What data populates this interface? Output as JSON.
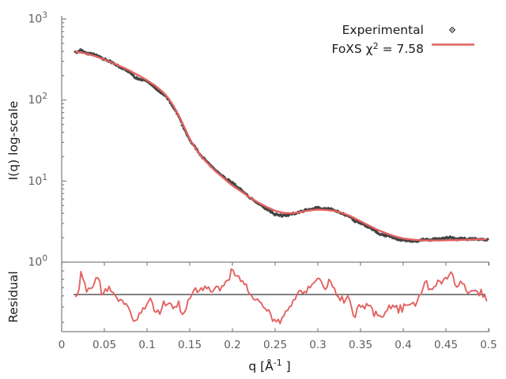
{
  "figure": {
    "legend": {
      "experimental_label": "Experimental",
      "fit_label_prefix": "FoXS χ",
      "fit_label_sup": "2",
      "fit_label_suffix": " = 7.58",
      "chi_squared": 7.58
    },
    "axes": {
      "xlabel_prefix": "q [Å",
      "xlabel_sup": "-1",
      "xlabel_suffix": " ]",
      "ylabel_main": "I(q) log-scale",
      "ylabel_residual": "Residual",
      "x_tick_labels": [
        "0",
        "0.05",
        "0.1",
        "0.15",
        "0.2",
        "0.25",
        "0.3",
        "0.35",
        "0.4",
        "0.45",
        "0.5"
      ],
      "x_tick_values": [
        0,
        0.05,
        0.1,
        0.15,
        0.2,
        0.25,
        0.3,
        0.35,
        0.4,
        0.45,
        0.5
      ],
      "y_tick_labels": [
        {
          "base": "10",
          "exp": "3",
          "value": 1000
        },
        {
          "base": "10",
          "exp": "2",
          "value": 100
        },
        {
          "base": "10",
          "exp": "1",
          "value": 10
        },
        {
          "base": "10",
          "exp": "0",
          "value": 1
        }
      ]
    },
    "colors": {
      "experimental": "#333333",
      "fit": "#e26261",
      "axis": "#808080",
      "tick_text": "#5e5e5e",
      "reference_line": "#000000",
      "background": "#ffffff"
    }
  },
  "chart_data": [
    {
      "type": "scatter",
      "title": "FoXS fit to experimental SAXS profile",
      "xlabel": "q [Å^-1]",
      "ylabel": "I(q) log-scale",
      "x_range": [
        0,
        0.5
      ],
      "y_scale": "log",
      "y_range": [
        1,
        1000
      ],
      "grid": false,
      "legend_position": "top-right",
      "series": [
        {
          "name": "Experimental",
          "type": "scatter",
          "marker": "diamond",
          "color": "#333333",
          "q_start": 0.016,
          "q_end": 0.499,
          "q_step": 0.001,
          "note": "dense experimental points; intensity = fit curve × residual ratio with ~2% noise"
        },
        {
          "name": "FoXS χ2 = 7.58",
          "type": "line",
          "color": "#e26261",
          "chi2": 7.58,
          "q": [
            0.016,
            0.02,
            0.025,
            0.03,
            0.035,
            0.04,
            0.045,
            0.05,
            0.055,
            0.06,
            0.065,
            0.07,
            0.075,
            0.08,
            0.085,
            0.09,
            0.095,
            0.1,
            0.105,
            0.11,
            0.115,
            0.12,
            0.125,
            0.13,
            0.135,
            0.14,
            0.145,
            0.15,
            0.155,
            0.16,
            0.165,
            0.17,
            0.175,
            0.18,
            0.185,
            0.19,
            0.195,
            0.2,
            0.205,
            0.21,
            0.22,
            0.23,
            0.24,
            0.25,
            0.26,
            0.27,
            0.28,
            0.29,
            0.3,
            0.31,
            0.32,
            0.33,
            0.34,
            0.35,
            0.36,
            0.37,
            0.38,
            0.39,
            0.4,
            0.41,
            0.42,
            0.43,
            0.44,
            0.45,
            0.46,
            0.47,
            0.48,
            0.49,
            0.5
          ],
          "I": [
            392,
            388,
            380,
            370,
            358,
            345,
            330,
            315,
            300,
            285,
            271,
            257,
            243,
            229,
            215,
            201,
            188,
            175,
            162,
            149,
            135,
            121,
            105,
            88,
            71,
            56,
            43,
            33,
            27,
            22.5,
            19.3,
            17,
            15,
            13.3,
            12,
            10.8,
            9.7,
            8.8,
            8.1,
            7.5,
            6.3,
            5.45,
            4.8,
            4.3,
            4.05,
            4.0,
            4.15,
            4.35,
            4.45,
            4.4,
            4.28,
            4.0,
            3.62,
            3.2,
            2.82,
            2.5,
            2.27,
            2.08,
            1.96,
            1.9,
            1.86,
            1.85,
            1.85,
            1.86,
            1.87,
            1.88,
            1.9,
            1.91,
            1.92
          ]
        }
      ]
    },
    {
      "type": "line",
      "title": "Residual (I_experimental / I_fit)",
      "ylabel": "Residual",
      "x_range": [
        0,
        0.5
      ],
      "reference_line_y": 1.0,
      "color": "#e26261",
      "series": [
        {
          "name": "Residual",
          "q": [
            0.016,
            0.0173,
            0.02,
            0.023,
            0.027,
            0.03,
            0.036,
            0.042,
            0.048,
            0.052,
            0.057,
            0.064,
            0.07,
            0.076,
            0.082,
            0.087,
            0.094,
            0.101,
            0.107,
            0.113,
            0.119,
            0.125,
            0.131,
            0.138,
            0.141,
            0.146,
            0.15,
            0.156,
            0.162,
            0.169,
            0.175,
            0.181,
            0.187,
            0.193,
            0.199,
            0.206,
            0.212,
            0.218,
            0.224,
            0.233,
            0.243,
            0.25,
            0.258,
            0.264,
            0.27,
            0.278,
            0.286,
            0.295,
            0.3,
            0.307,
            0.314,
            0.32,
            0.326,
            0.332,
            0.338,
            0.343,
            0.347,
            0.354,
            0.36,
            0.366,
            0.372,
            0.379,
            0.384,
            0.391,
            0.397,
            0.403,
            0.409,
            0.416,
            0.421,
            0.426,
            0.431,
            0.437,
            0.443,
            0.449,
            0.457,
            0.463,
            0.468,
            0.474,
            0.48,
            0.486,
            0.493,
            0.499
          ],
          "ratio": [
            1.0,
            0.99,
            1.03,
            1.08,
            1.045,
            1.014,
            1.037,
            1.06,
            0.995,
            1.02,
            1.014,
            0.986,
            0.98,
            0.96,
            0.932,
            0.895,
            0.943,
            0.98,
            0.96,
            0.932,
            0.966,
            0.974,
            0.952,
            0.966,
            0.932,
            0.95,
            0.974,
            1.014,
            1.005,
            1.028,
            1.009,
            1.03,
            1.02,
            1.043,
            1.088,
            1.06,
            1.037,
            1.014,
            0.989,
            0.966,
            0.932,
            0.901,
            0.915,
            0.938,
            0.98,
            1.009,
            1.023,
            1.037,
            1.06,
            1.028,
            1.043,
            1.014,
            0.989,
            0.986,
            0.98,
            0.918,
            0.952,
            0.957,
            0.952,
            0.938,
            0.918,
            0.929,
            0.952,
            0.957,
            0.943,
            0.957,
            0.966,
            0.974,
            1.009,
            1.043,
            1.014,
            1.037,
            1.04,
            1.06,
            1.085,
            1.014,
            1.037,
            1.023,
            1.011,
            1.017,
            1.0,
            0.99
          ]
        }
      ]
    }
  ]
}
